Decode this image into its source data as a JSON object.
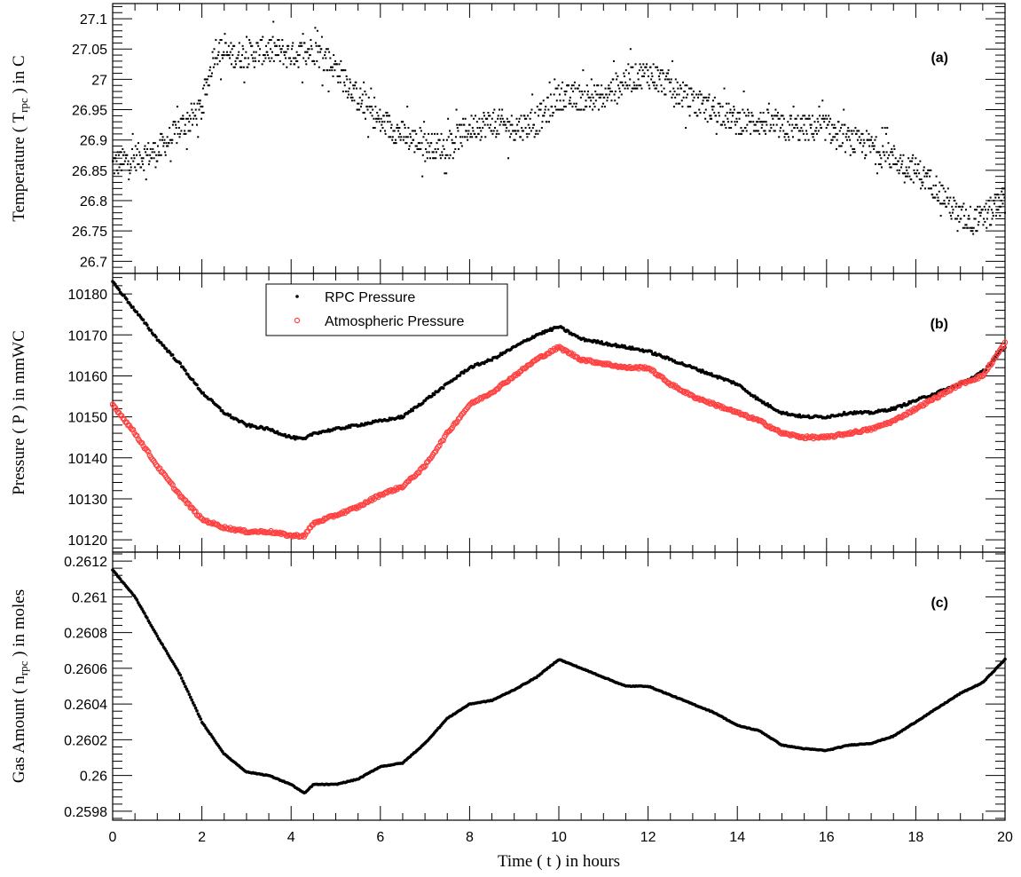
{
  "chart_data": [
    {
      "type": "scatter",
      "panel_label": "(a)",
      "ylabel": "Temperature ( T_rpc ) in C",
      "ylim": [
        26.68,
        27.125
      ],
      "yticks": [
        "26.7",
        "26.75",
        "26.8",
        "26.85",
        "26.9",
        "26.95",
        "27",
        "27.05",
        "27.1"
      ],
      "x": [
        0,
        0.5,
        1.0,
        1.5,
        2.0,
        2.3,
        2.6,
        3.0,
        3.5,
        4.0,
        4.5,
        5.0,
        5.5,
        6.0,
        6.5,
        7.0,
        7.5,
        8.0,
        8.5,
        9.0,
        9.5,
        10.0,
        10.5,
        11.0,
        11.5,
        12.0,
        12.5,
        13.0,
        13.5,
        14.0,
        14.5,
        15.0,
        15.5,
        16.0,
        16.5,
        17.0,
        17.5,
        18.0,
        18.5,
        19.0,
        19.5,
        20.0
      ],
      "series": [
        {
          "values": [
            26.86,
            26.87,
            26.88,
            26.92,
            26.95,
            27.05,
            27.04,
            27.04,
            27.05,
            27.04,
            27.05,
            27.02,
            26.97,
            26.93,
            26.91,
            26.89,
            26.89,
            26.92,
            26.93,
            26.92,
            26.93,
            26.97,
            26.97,
            26.97,
            27.0,
            27.01,
            26.99,
            26.96,
            26.95,
            26.93,
            26.93,
            26.92,
            26.92,
            26.92,
            26.9,
            26.89,
            26.87,
            26.85,
            26.82,
            26.77,
            26.77,
            26.8
          ]
        }
      ]
    },
    {
      "type": "scatter",
      "panel_label": "(b)",
      "ylabel": "Pressure ( P ) in mmWC",
      "ylim": [
        10117,
        10185
      ],
      "yticks": [
        "10120",
        "10130",
        "10140",
        "10150",
        "10160",
        "10170",
        "10180"
      ],
      "legend": {
        "position": "top-center"
      },
      "x": [
        0,
        0.5,
        1.0,
        1.5,
        2.0,
        2.5,
        3.0,
        3.5,
        4.0,
        4.3,
        4.5,
        5.0,
        5.5,
        6.0,
        6.5,
        7.0,
        7.5,
        8.0,
        8.5,
        9.0,
        9.5,
        10.0,
        10.5,
        11.0,
        11.5,
        12.0,
        12.5,
        13.0,
        13.5,
        14.0,
        14.5,
        15.0,
        15.5,
        16.0,
        16.5,
        17.0,
        17.5,
        18.0,
        18.5,
        19.0,
        19.5,
        20.0
      ],
      "series": [
        {
          "name": "RPC Pressure",
          "color": "#000000",
          "values": [
            10183,
            10176,
            10169,
            10163,
            10156,
            10151,
            10148,
            10147,
            10145,
            10144.5,
            10146,
            10147,
            10148,
            10149,
            10150,
            10154,
            10158,
            10162,
            10164,
            10167,
            10170,
            10172,
            10169,
            10168,
            10167,
            10166,
            10164,
            10162,
            10160,
            10158,
            10154,
            10151,
            10150,
            10150,
            10151,
            10151,
            10152,
            10154,
            10156,
            10158,
            10161,
            10167
          ]
        },
        {
          "name": "Atmospheric Pressure",
          "color": "#ff4040",
          "values": [
            10153,
            10146,
            10138,
            10131,
            10125,
            10123,
            10122,
            10122,
            10121,
            10121,
            10124,
            10126,
            10128,
            10131,
            10133,
            10138,
            10146,
            10153,
            10156,
            10160,
            10164,
            10167,
            10164,
            10163,
            10162,
            10162,
            10158,
            10155,
            10153,
            10151,
            10149,
            10146,
            10145,
            10145,
            10146,
            10147,
            10149,
            10152,
            10155,
            10158,
            10160,
            10168
          ]
        }
      ]
    },
    {
      "type": "scatter",
      "panel_label": "(c)",
      "ylabel": "Gas Amount ( n_rpc ) in moles",
      "ylim": [
        0.25975,
        0.26125
      ],
      "yticks": [
        "0.2598",
        "0.26",
        "0.2602",
        "0.2604",
        "0.2606",
        "0.2608",
        "0.261",
        "0.2612"
      ],
      "xlabel": "Time ( t ) in hours",
      "xlim": [
        0,
        20
      ],
      "xticks": [
        "0",
        "2",
        "4",
        "6",
        "8",
        "10",
        "12",
        "14",
        "16",
        "18",
        "20"
      ],
      "x": [
        0,
        0.5,
        1.0,
        1.5,
        2.0,
        2.5,
        3.0,
        3.5,
        4.0,
        4.3,
        4.5,
        5.0,
        5.5,
        6.0,
        6.5,
        7.0,
        7.5,
        8.0,
        8.5,
        9.0,
        9.5,
        10.0,
        10.5,
        11.0,
        11.5,
        12.0,
        12.5,
        13.0,
        13.5,
        14.0,
        14.5,
        15.0,
        15.5,
        16.0,
        16.5,
        17.0,
        17.5,
        18.0,
        18.5,
        19.0,
        19.5,
        20.0
      ],
      "series": [
        {
          "values": [
            0.26115,
            0.261,
            0.26078,
            0.26057,
            0.2603,
            0.26012,
            0.26002,
            0.26,
            0.25995,
            0.2599,
            0.25995,
            0.25995,
            0.25998,
            0.26005,
            0.26007,
            0.26018,
            0.26032,
            0.2604,
            0.26042,
            0.26048,
            0.26055,
            0.26065,
            0.2606,
            0.26055,
            0.2605,
            0.2605,
            0.26045,
            0.2604,
            0.26035,
            0.26028,
            0.26025,
            0.26017,
            0.26015,
            0.26014,
            0.26017,
            0.26018,
            0.26022,
            0.2603,
            0.26038,
            0.26046,
            0.26052,
            0.26065
          ]
        }
      ]
    }
  ]
}
